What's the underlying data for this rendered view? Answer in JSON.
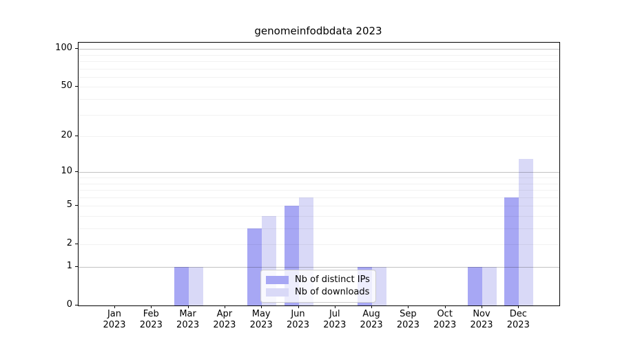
{
  "title": "genomeinfodbdata 2023",
  "chart_data": {
    "type": "bar",
    "title": "genomeinfodbdata 2023",
    "categories": [
      "Jan 2023",
      "Feb 2023",
      "Mar 2023",
      "Apr 2023",
      "May 2023",
      "Jun 2023",
      "Jul 2023",
      "Aug 2023",
      "Sep 2023",
      "Oct 2023",
      "Nov 2023",
      "Dec 2023"
    ],
    "series": [
      {
        "name": "Nb of distinct IPs",
        "color": "#a7a7f4",
        "values": [
          0,
          0,
          1,
          0,
          3,
          5,
          0,
          1,
          0,
          0,
          1,
          6
        ]
      },
      {
        "name": "Nb of downloads",
        "color": "#d9d9f7",
        "values": [
          0,
          0,
          1,
          0,
          4,
          6,
          0,
          1,
          0,
          0,
          1,
          13
        ]
      }
    ],
    "xlabel": "",
    "ylabel": "",
    "yscale": "log1p",
    "ylim": [
      0,
      112
    ],
    "ytick_values": [
      0,
      1,
      2,
      5,
      10,
      20,
      50,
      100
    ],
    "major_grid_values": [
      1,
      10,
      100
    ],
    "minor_grid_values": [
      2,
      3,
      4,
      5,
      6,
      7,
      8,
      9,
      20,
      30,
      40,
      50,
      60,
      70,
      80,
      90
    ],
    "grid": true,
    "legend_position": "lower center"
  },
  "legend": {
    "items": [
      {
        "label": "Nb of distinct IPs",
        "color": "#a7a7f4"
      },
      {
        "label": "Nb of downloads",
        "color": "#d9d9f7"
      }
    ]
  },
  "colors": {
    "distinct_ips": "#a7a7f4",
    "downloads": "#d9d9f7",
    "major_grid": "#c4c4c4",
    "minor_grid": "#ececec",
    "axis": "#000000",
    "background": "#ffffff"
  }
}
